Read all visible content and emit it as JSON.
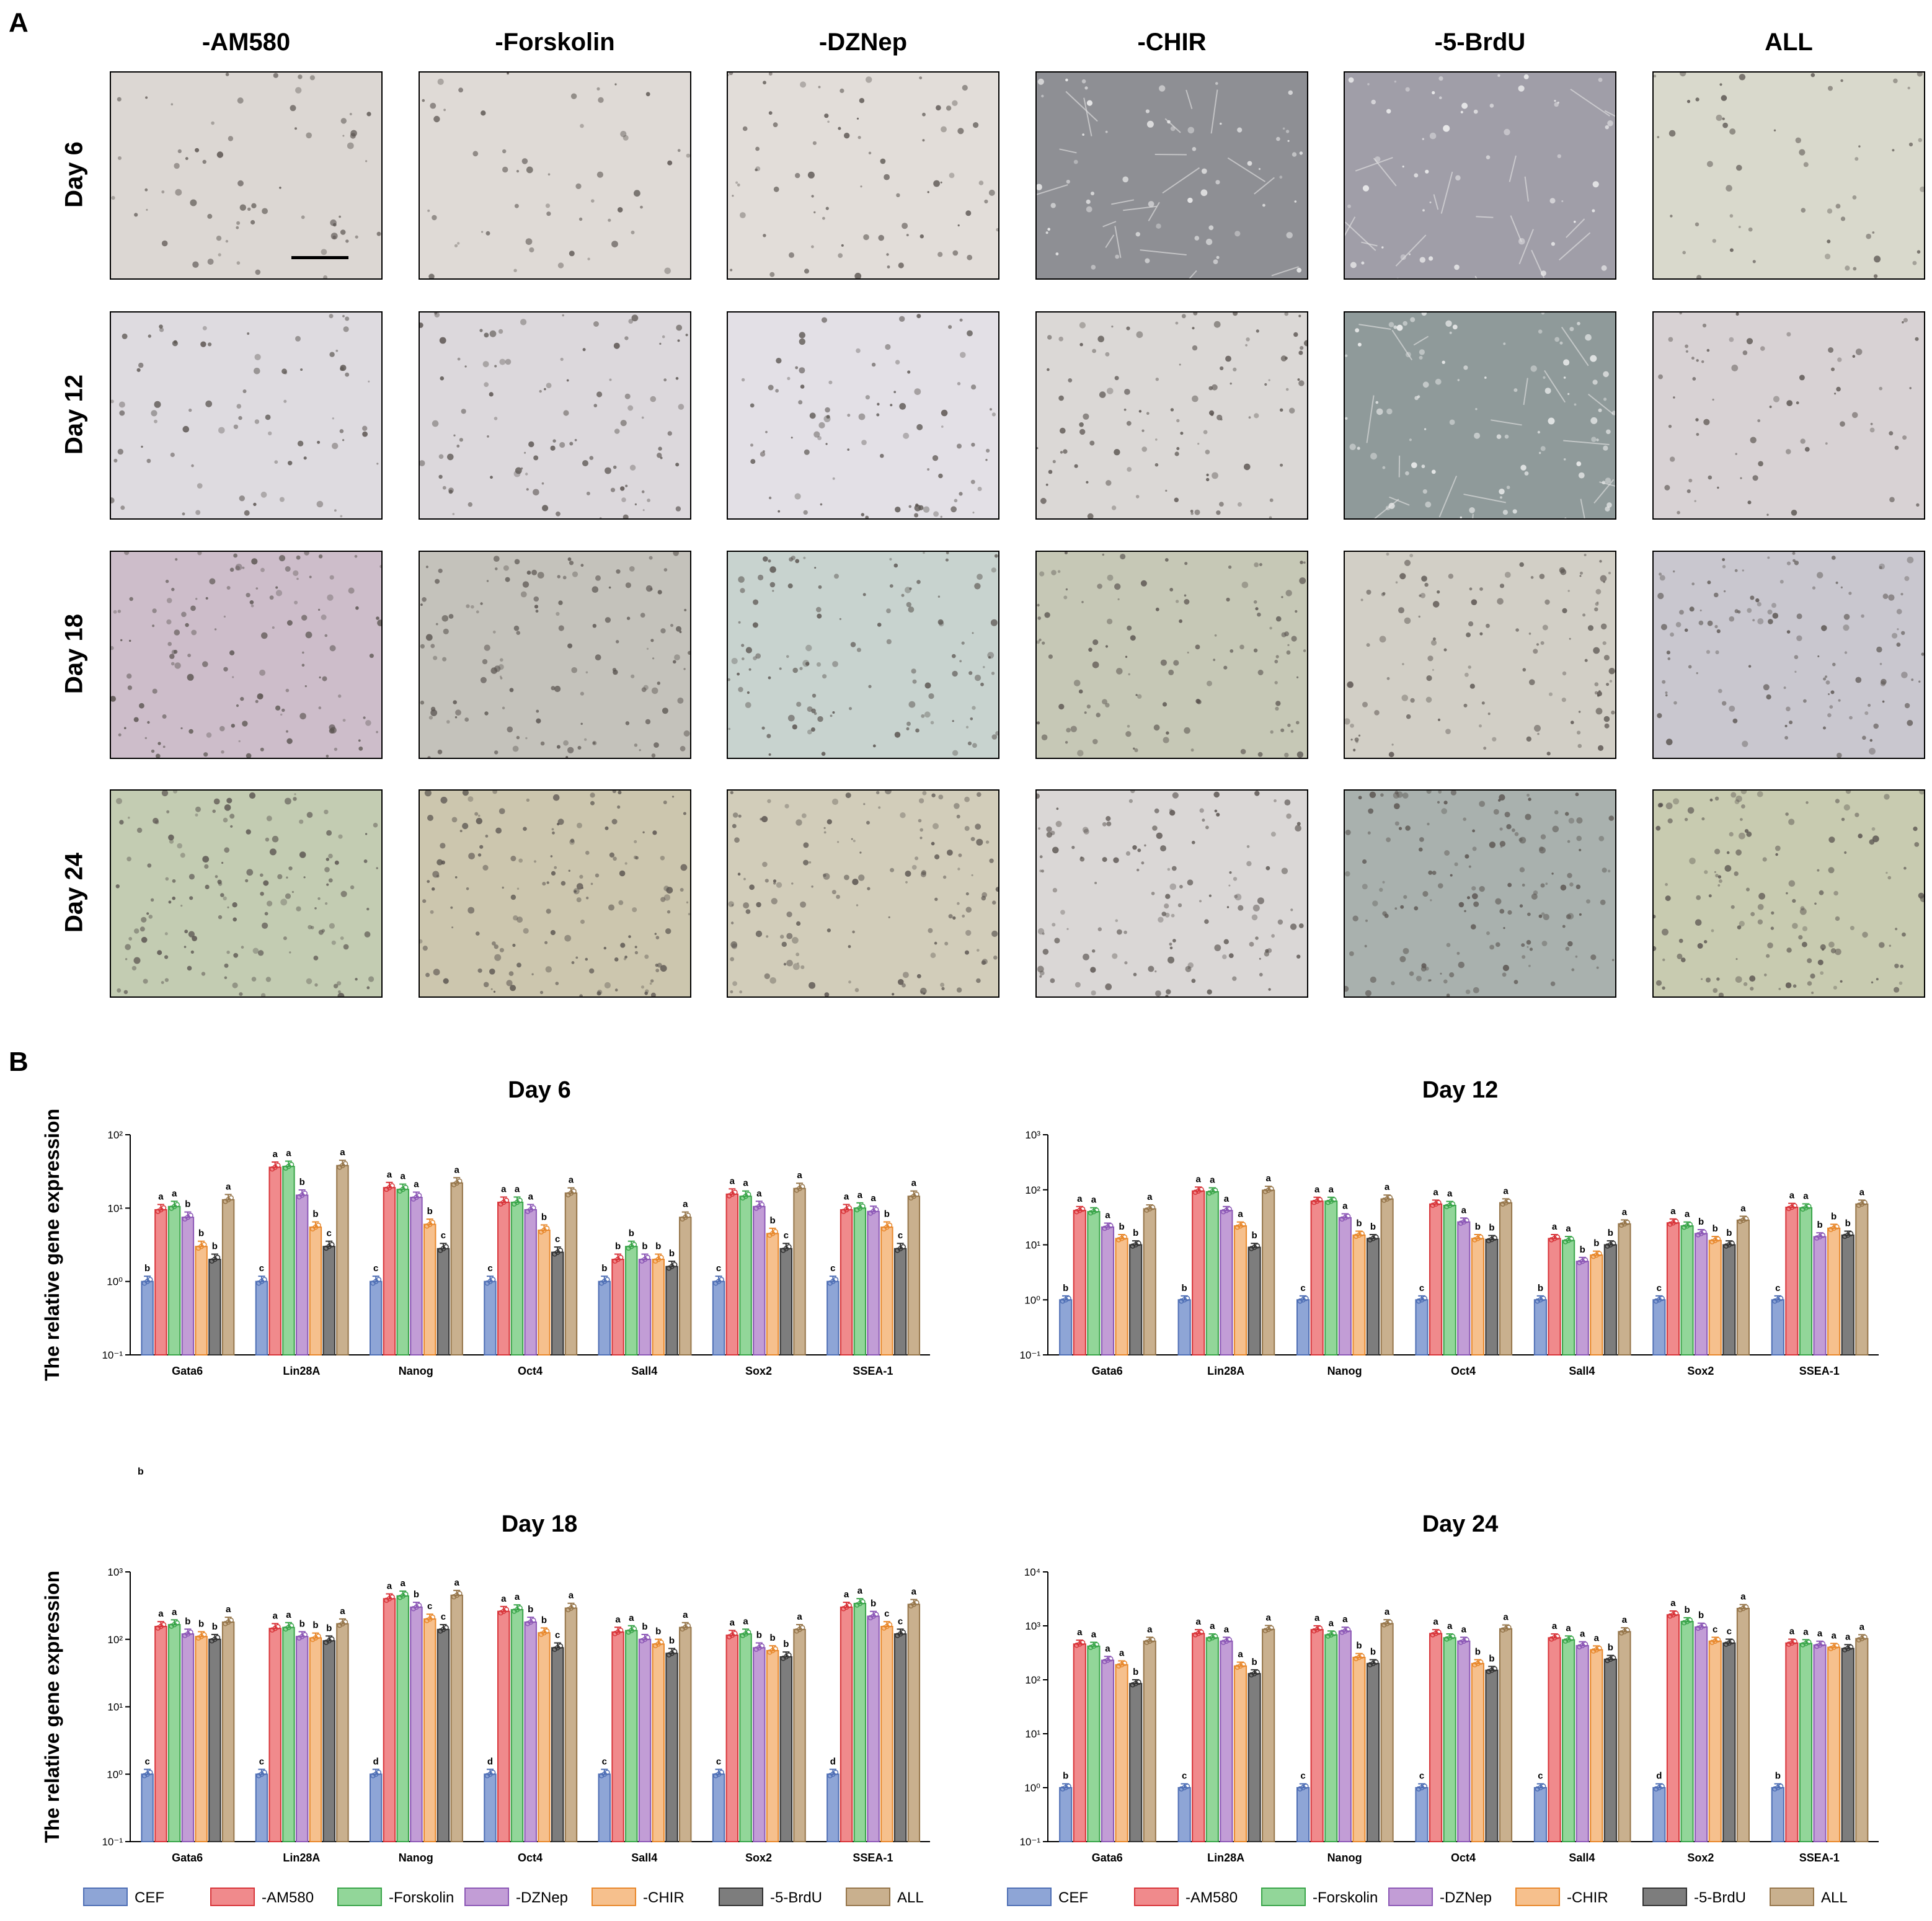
{
  "panels": {
    "A": "A",
    "B": "B"
  },
  "micrographs": {
    "columns": [
      "-AM580",
      "-Forskolin",
      "-DZNep",
      "-CHIR",
      "-5-BrdU",
      "ALL"
    ],
    "rows": [
      "Day 6",
      "Day 12",
      "Day 18",
      "Day 24"
    ],
    "tones": [
      [
        "#dcd7d3",
        "#dfdad6",
        "#e2ddd9",
        "#8e8f94",
        "#a09ea8",
        "#d9d9cc"
      ],
      [
        "#dedbe0",
        "#dcd8dc",
        "#e3e0e6",
        "#dbd8d6",
        "#8f9a9a",
        "#d8d2d4"
      ],
      [
        "#cdbdca",
        "#c4c2bb",
        "#c8d3cf",
        "#c6c8b6",
        "#d2cfc6",
        "#c9c7cf"
      ],
      [
        "#c3ccb2",
        "#ccc6ae",
        "#d2cdba",
        "#dad7d6",
        "#a9b1ae",
        "#c8cbb0"
      ]
    ],
    "dark_background": [
      [
        false,
        false,
        false,
        true,
        true,
        false
      ],
      [
        false,
        false,
        false,
        false,
        true,
        false
      ],
      [
        false,
        false,
        false,
        false,
        false,
        false
      ],
      [
        false,
        false,
        false,
        false,
        false,
        false
      ]
    ]
  },
  "stray_label": "b",
  "chart_data": [
    {
      "type": "bar",
      "title": "Day 6",
      "ylabel": "The relative gene expression",
      "yscale": "log",
      "ylim": [
        0.1,
        100
      ],
      "yticks": [
        "10⁻¹",
        "10⁰",
        "10¹",
        "10²"
      ],
      "categories": [
        "Gata6",
        "Lin28A",
        "Nanog",
        "Oct4",
        "Sall4",
        "Sox2",
        "SSEA-1"
      ],
      "series": [
        {
          "name": "CEF",
          "values": [
            1,
            1,
            1,
            1,
            1,
            1,
            1
          ],
          "letters": [
            "b",
            "c",
            "c",
            "c",
            "b",
            "c",
            "c"
          ]
        },
        {
          "name": "-AM580",
          "values": [
            9.5,
            36,
            19,
            12,
            2.0,
            15.5,
            9.5
          ],
          "letters": [
            "a",
            "a",
            "a",
            "a",
            "b",
            "a",
            "a"
          ]
        },
        {
          "name": "-Forskolin",
          "values": [
            10.5,
            37,
            18,
            12,
            3.0,
            14.5,
            10
          ],
          "letters": [
            "a",
            "a",
            "a",
            "a",
            "b",
            "a",
            "a"
          ]
        },
        {
          "name": "-DZNep",
          "values": [
            7.5,
            15,
            14,
            9.5,
            2.0,
            10.5,
            9
          ],
          "letters": [
            "b",
            "b",
            "a",
            "a",
            "b",
            "a",
            "a"
          ]
        },
        {
          "name": "-CHIR",
          "values": [
            3.0,
            5.5,
            6.0,
            5.0,
            2.0,
            4.5,
            5.5
          ],
          "letters": [
            "b",
            "b",
            "b",
            "b",
            "b",
            "b",
            "b"
          ]
        },
        {
          "name": "-5-BrdU",
          "values": [
            2.0,
            3.0,
            2.8,
            2.5,
            1.6,
            2.8,
            2.8
          ],
          "letters": [
            "b",
            "c",
            "c",
            "c",
            "b",
            "c",
            "c"
          ]
        },
        {
          "name": "ALL",
          "values": [
            13,
            38,
            22,
            16,
            7.5,
            18.5,
            14.5
          ],
          "letters": [
            "a",
            "a",
            "a",
            "a",
            "a",
            "a",
            "a"
          ]
        }
      ]
    },
    {
      "type": "bar",
      "title": "Day 12",
      "ylabel": "",
      "yscale": "log",
      "ylim": [
        0.1,
        1000
      ],
      "yticks": [
        "10⁻¹",
        "10⁰",
        "10¹",
        "10²",
        "10³"
      ],
      "categories": [
        "Gata6",
        "Lin28A",
        "Nanog",
        "Oct4",
        "Sall4",
        "Sox2",
        "SSEA-1"
      ],
      "series": [
        {
          "name": "CEF",
          "values": [
            1,
            1,
            1,
            1,
            1,
            1,
            1
          ],
          "letters": [
            "b",
            "b",
            "c",
            "c",
            "b",
            "c",
            "c"
          ]
        },
        {
          "name": "-AM580",
          "values": [
            42,
            95,
            62,
            55,
            13,
            25,
            48
          ],
          "letters": [
            "a",
            "a",
            "a",
            "a",
            "a",
            "a",
            "a"
          ]
        },
        {
          "name": "-Forskolin",
          "values": [
            40,
            92,
            62,
            52,
            12,
            22,
            47
          ],
          "letters": [
            "a",
            "a",
            "a",
            "a",
            "a",
            "a",
            "a"
          ]
        },
        {
          "name": "-DZNep",
          "values": [
            21,
            42,
            31,
            26,
            5,
            16,
            14
          ],
          "letters": [
            "a",
            "a",
            "a",
            "a",
            "b",
            "b",
            "b"
          ]
        },
        {
          "name": "-CHIR",
          "values": [
            13,
            22,
            15,
            13,
            6.5,
            12,
            20
          ],
          "letters": [
            "b",
            "a",
            "b",
            "b",
            "b",
            "b",
            "b"
          ]
        },
        {
          "name": "-5-BrdU",
          "values": [
            10,
            9,
            13,
            12.5,
            10,
            10,
            15
          ],
          "letters": [
            "b",
            "b",
            "b",
            "b",
            "b",
            "b",
            "b"
          ]
        },
        {
          "name": "ALL",
          "values": [
            45,
            98,
            68,
            58,
            24,
            28,
            55
          ],
          "letters": [
            "a",
            "a",
            "a",
            "a",
            "a",
            "a",
            "a"
          ]
        }
      ]
    },
    {
      "type": "bar",
      "title": "Day 18",
      "ylabel": "The relative gene expression",
      "yscale": "log",
      "ylim": [
        0.1,
        1000
      ],
      "yticks": [
        "10⁻¹",
        "10⁰",
        "10¹",
        "10²",
        "10³"
      ],
      "categories": [
        "Gata6",
        "Lin28A",
        "Nanog",
        "Oct4",
        "Sall4",
        "Sox2",
        "SSEA-1"
      ],
      "series": [
        {
          "name": "CEF",
          "values": [
            1,
            1,
            1,
            1,
            1,
            1,
            1
          ],
          "letters": [
            "c",
            "c",
            "d",
            "d",
            "c",
            "c",
            "d"
          ]
        },
        {
          "name": "-AM580",
          "values": [
            155,
            145,
            400,
            260,
            128,
            115,
            300
          ],
          "letters": [
            "a",
            "a",
            "a",
            "a",
            "a",
            "a",
            "a"
          ]
        },
        {
          "name": "-Forskolin",
          "values": [
            165,
            150,
            440,
            275,
            135,
            120,
            340
          ],
          "letters": [
            "a",
            "a",
            "a",
            "a",
            "a",
            "a",
            "a"
          ]
        },
        {
          "name": "-DZNep",
          "values": [
            120,
            110,
            300,
            180,
            100,
            75,
            220
          ],
          "letters": [
            "b",
            "b",
            "b",
            "b",
            "b",
            "b",
            "b"
          ]
        },
        {
          "name": "-CHIR",
          "values": [
            110,
            105,
            200,
            125,
            85,
            68,
            155
          ],
          "letters": [
            "b",
            "b",
            "c",
            "b",
            "b",
            "b",
            "c"
          ]
        },
        {
          "name": "-5-BrdU",
          "values": [
            100,
            95,
            140,
            75,
            62,
            55,
            120
          ],
          "letters": [
            "b",
            "b",
            "c",
            "c",
            "b",
            "b",
            "c"
          ]
        },
        {
          "name": "ALL",
          "values": [
            180,
            170,
            450,
            290,
            150,
            140,
            330
          ],
          "letters": [
            "a",
            "a",
            "a",
            "a",
            "a",
            "a",
            "a"
          ]
        }
      ]
    },
    {
      "type": "bar",
      "title": "Day 24",
      "ylabel": "",
      "yscale": "log",
      "ylim": [
        0.1,
        10000
      ],
      "yticks": [
        "10⁻¹",
        "10⁰",
        "10¹",
        "10²",
        "10³",
        "10⁴"
      ],
      "categories": [
        "Gata6",
        "Lin28A",
        "Nanog",
        "Oct4",
        "Sall4",
        "Sox2",
        "SSEA-1"
      ],
      "series": [
        {
          "name": "CEF",
          "values": [
            1,
            1,
            1,
            1,
            1,
            1,
            1
          ],
          "letters": [
            "b",
            "c",
            "c",
            "c",
            "c",
            "d",
            "b"
          ]
        },
        {
          "name": "-AM580",
          "values": [
            460,
            720,
            850,
            720,
            600,
            1600,
            480
          ],
          "letters": [
            "a",
            "a",
            "a",
            "a",
            "a",
            "a",
            "a"
          ]
        },
        {
          "name": "-Forskolin",
          "values": [
            420,
            600,
            680,
            600,
            550,
            1200,
            470
          ],
          "letters": [
            "a",
            "a",
            "a",
            "a",
            "a",
            "b",
            "a"
          ]
        },
        {
          "name": "-DZNep",
          "values": [
            230,
            520,
            800,
            520,
            430,
            950,
            440
          ],
          "letters": [
            "a",
            "a",
            "a",
            "a",
            "a",
            "b",
            "a"
          ]
        },
        {
          "name": "-CHIR",
          "values": [
            190,
            180,
            260,
            200,
            360,
            520,
            400
          ],
          "letters": [
            "a",
            "a",
            "b",
            "b",
            "a",
            "c",
            "a"
          ]
        },
        {
          "name": "-5-BrdU",
          "values": [
            85,
            130,
            200,
            150,
            240,
            480,
            380
          ],
          "letters": [
            "b",
            "b",
            "b",
            "b",
            "b",
            "c",
            "a"
          ]
        },
        {
          "name": "ALL",
          "values": [
            520,
            860,
            1100,
            880,
            780,
            2100,
            580
          ],
          "letters": [
            "a",
            "a",
            "a",
            "a",
            "a",
            "a",
            "a"
          ]
        }
      ]
    }
  ],
  "legend": {
    "items": [
      "CEF",
      "-AM580",
      "-Forskolin",
      "-DZNep",
      "-CHIR",
      "-5-BrdU",
      "ALL"
    ],
    "colors": [
      "#8ea5d6",
      "#f08a8c",
      "#92d699",
      "#c29dd6",
      "#f6c08d",
      "#7d7d7d",
      "#c9b08e"
    ],
    "edge_colors": [
      "#4f6fb5",
      "#d8353a",
      "#3aa54a",
      "#8c58b6",
      "#e8882c",
      "#333333",
      "#96764b"
    ]
  }
}
